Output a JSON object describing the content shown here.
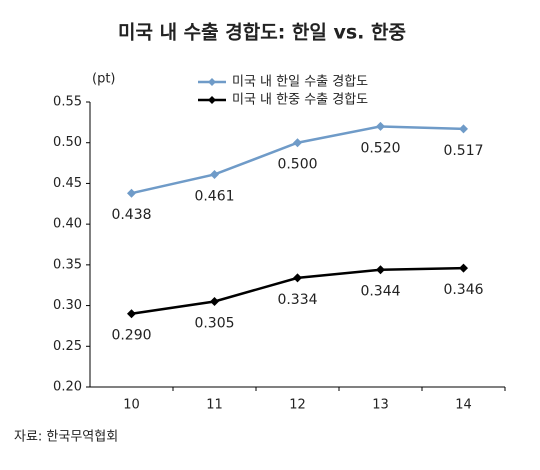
{
  "chart_data": {
    "type": "line",
    "title": "미국 내 수출 경합도: 한일 vs. 한중",
    "y_unit": "(pt)",
    "source": "자료: 한국무역협회",
    "categories": [
      "10",
      "11",
      "12",
      "13",
      "14"
    ],
    "series": [
      {
        "name": "미국 내 한일 수출 경합도",
        "color": "#6f9bc8",
        "values": [
          0.438,
          0.461,
          0.5,
          0.52,
          0.517
        ],
        "value_labels": [
          "0.438",
          "0.461",
          "0.500",
          "0.520",
          "0.517"
        ]
      },
      {
        "name": "미국 내 한중 수출 경합도",
        "color": "#000000",
        "values": [
          0.29,
          0.305,
          0.334,
          0.344,
          0.346
        ],
        "value_labels": [
          "0.290",
          "0.305",
          "0.334",
          "0.344",
          "0.346"
        ]
      }
    ],
    "ylim": [
      0.2,
      0.55
    ],
    "yticks": [
      {
        "value": 0.2,
        "label": "0.20"
      },
      0.25,
      {
        "value": 0.3,
        "label": "0.30"
      },
      0.35,
      {
        "value": 0.4,
        "label": "0.40"
      },
      0.45,
      {
        "value": 0.5,
        "label": "0.50"
      },
      0.55
    ],
    "legend": "top",
    "grid": false
  }
}
